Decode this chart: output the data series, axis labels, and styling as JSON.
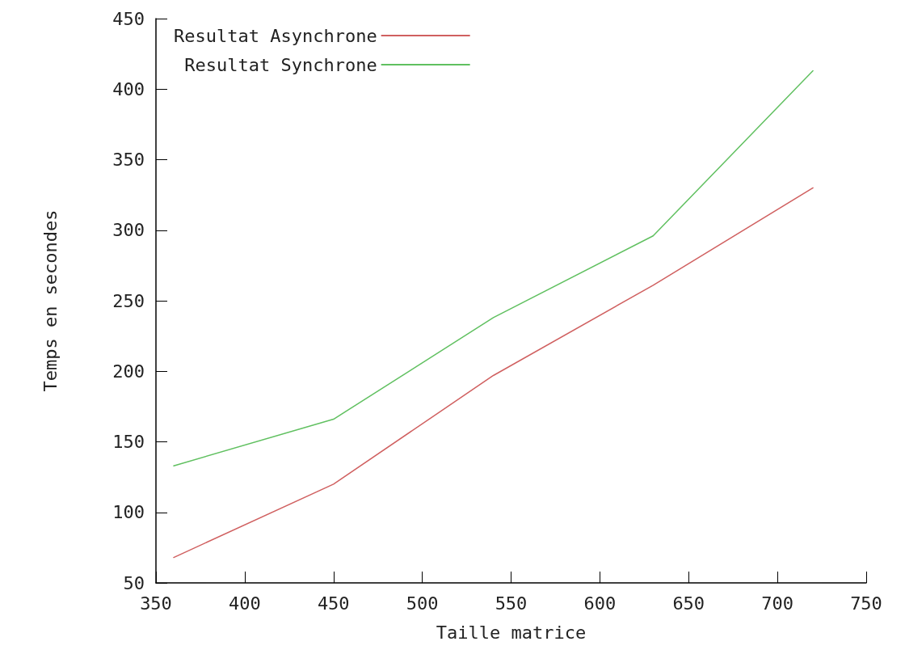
{
  "chart_data": {
    "type": "line",
    "xlabel": "Taille matrice",
    "ylabel": "Temps en secondes",
    "x": [
      360,
      450,
      540,
      630,
      720
    ],
    "series": [
      {
        "name": "Resultat Asynchrone",
        "color": "#d06060",
        "values": [
          68,
          120,
          197,
          261,
          330
        ]
      },
      {
        "name": "Resultat Synchrone",
        "color": "#60c060",
        "values": [
          133,
          166,
          238,
          296,
          413
        ]
      }
    ],
    "xlim": [
      350,
      750
    ],
    "xticks": [
      350,
      400,
      450,
      500,
      550,
      600,
      650,
      700,
      750
    ],
    "ylim": [
      50,
      450
    ],
    "yticks": [
      50,
      100,
      150,
      200,
      250,
      300,
      350,
      400,
      450
    ],
    "grid": false,
    "legend": "top left",
    "marker": "none",
    "line_style": "solid"
  }
}
